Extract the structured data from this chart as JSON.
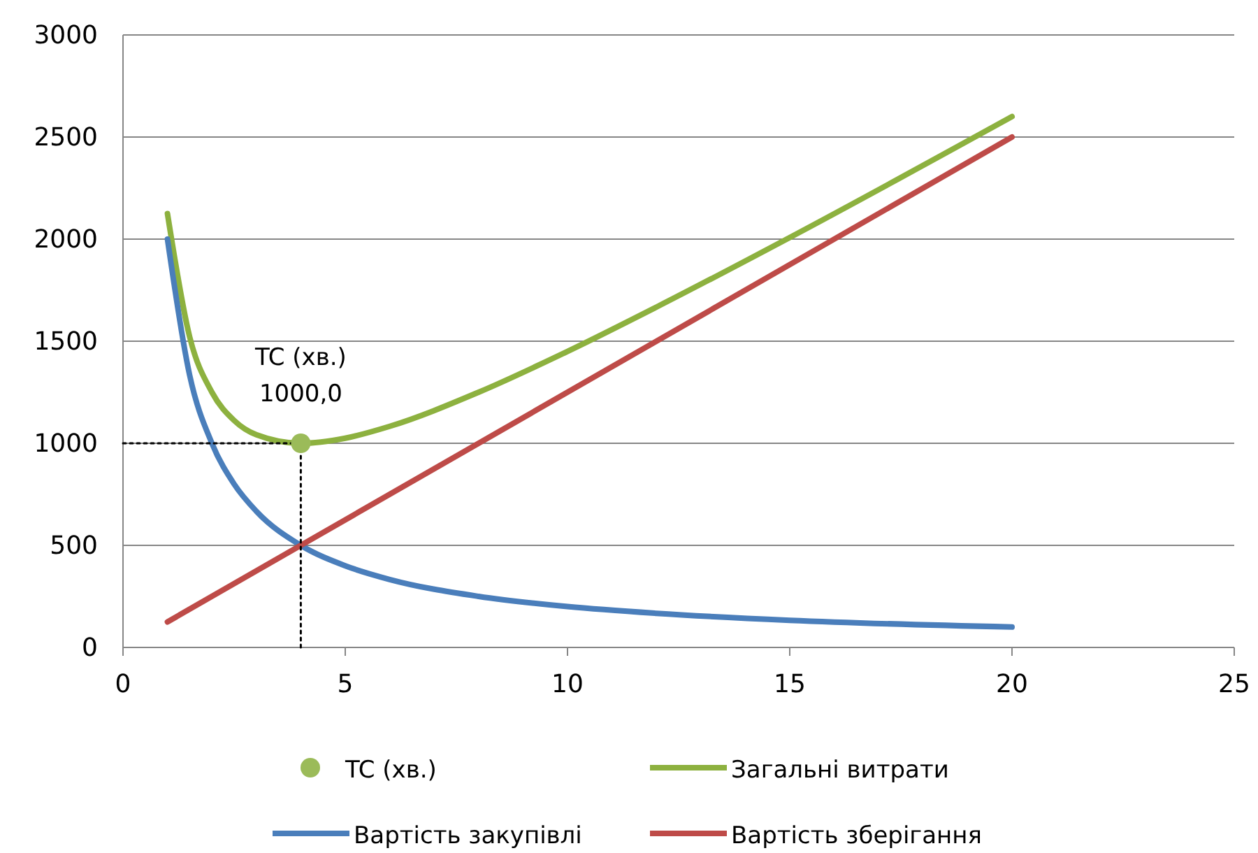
{
  "chart_data": {
    "type": "line",
    "xlim": [
      0,
      25
    ],
    "xticks": [
      0,
      5,
      10,
      15,
      20,
      25
    ],
    "ylim": [
      0,
      3000
    ],
    "yticks": [
      0,
      500,
      1000,
      1500,
      2000,
      2500,
      3000
    ],
    "grid": "y",
    "legend": "bottom",
    "line_style": "solid",
    "series": [
      {
        "name": "TC (хв.)",
        "type": "scatter",
        "marker": "circle",
        "color": "#9bbb59",
        "x": [
          4
        ],
        "values": [
          1000
        ],
        "value_labels": [
          "1000,0"
        ]
      },
      {
        "name": "Загальні витрати",
        "color": "#8db13f",
        "x": [
          1,
          1.5,
          2,
          2.5,
          3,
          4,
          5,
          6,
          8,
          10,
          12,
          15,
          20
        ],
        "values": [
          2125,
          1521,
          1250,
          1112,
          1042,
          1000,
          1025,
          1083,
          1250,
          1450,
          1667,
          2008,
          2600
        ]
      },
      {
        "name": "Вартість закупівлі",
        "color": "#4a7ebb",
        "x": [
          1,
          1.5,
          2,
          2.5,
          3,
          4,
          5,
          6,
          8,
          10,
          12,
          15,
          20
        ],
        "values": [
          2000,
          1333,
          1000,
          800,
          667,
          500,
          400,
          333,
          250,
          200,
          167,
          133,
          100
        ]
      },
      {
        "name": "Вартість зберігання",
        "color": "#be4b48",
        "x": [
          1,
          20
        ],
        "values": [
          125,
          2500
        ]
      },
      {
        "color": "#000000",
        "line_style": "dotted",
        "x": [
          0,
          4
        ],
        "values": [
          1000,
          1000
        ]
      },
      {
        "color": "#000000",
        "line_style": "dotted",
        "x": [
          4,
          4
        ],
        "values": [
          0,
          1000
        ]
      }
    ]
  }
}
